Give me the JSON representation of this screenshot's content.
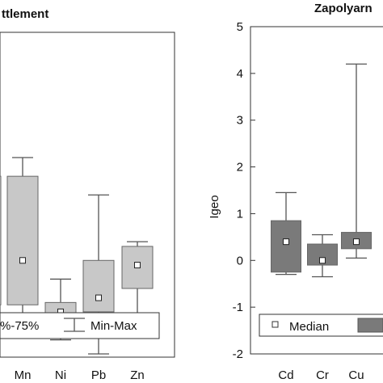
{
  "chart_data": [
    {
      "type": "box",
      "title": "ttlement",
      "categories": [
        "",
        "Mn",
        "Ni",
        "Pb",
        "Zn"
      ],
      "box_color": "#c8c8c8",
      "series": [
        {
          "category": "",
          "median": 0.0,
          "q1": -0.95,
          "q3": 1.8,
          "min": -1.4,
          "max": 2.2
        },
        {
          "category": "Mn",
          "median": 0.0,
          "q1": -0.95,
          "q3": 1.8,
          "min": -1.4,
          "max": 2.2
        },
        {
          "category": "Ni",
          "median": -1.1,
          "q1": -1.3,
          "q3": -0.9,
          "min": -1.7,
          "max": -0.4
        },
        {
          "category": "Pb",
          "median": -0.8,
          "q1": -1.1,
          "q3": 0.0,
          "min": -2.0,
          "max": 1.4
        },
        {
          "category": "Zn",
          "median": -0.1,
          "q1": -0.6,
          "q3": 0.3,
          "min": -1.2,
          "max": 0.4
        }
      ],
      "legend": [
        "%-75%",
        "Min-Max"
      ]
    },
    {
      "type": "box",
      "title": "Zapolyarn",
      "ylabel": "Igeo",
      "ylim": [
        -2,
        5
      ],
      "yticks": [
        "5",
        "4",
        "3",
        "2",
        "1",
        "0",
        "-1",
        "-2"
      ],
      "categories": [
        "Cd",
        "Cr",
        "Cu"
      ],
      "box_color": "#7a7a7a",
      "series": [
        {
          "category": "Cd",
          "median": 0.4,
          "q1": -0.25,
          "q3": 0.85,
          "min": -0.3,
          "max": 1.45
        },
        {
          "category": "Cr",
          "median": 0.0,
          "q1": -0.1,
          "q3": 0.35,
          "min": -0.35,
          "max": 0.55
        },
        {
          "category": "Cu",
          "median": 0.4,
          "q1": 0.25,
          "q3": 0.6,
          "min": 0.05,
          "max": 4.2
        }
      ],
      "legend": [
        "Median"
      ]
    }
  ]
}
